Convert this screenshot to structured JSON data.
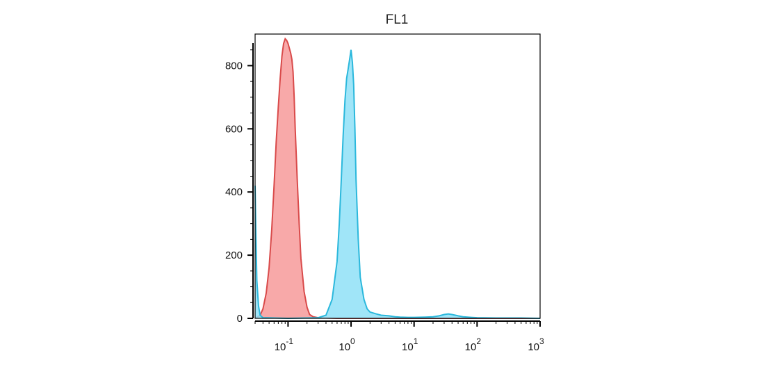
{
  "chart_data": {
    "type": "area",
    "title": "FL1",
    "xlabel": "",
    "ylabel": "",
    "xscale": "log",
    "xlim": [
      0.03,
      1000
    ],
    "ylim": [
      0,
      900
    ],
    "grid": false,
    "legend": "none",
    "yticks": [
      {
        "value": 0,
        "label": "0"
      },
      {
        "value": 200,
        "label": "200"
      },
      {
        "value": 400,
        "label": "400"
      },
      {
        "value": 600,
        "label": "600"
      },
      {
        "value": 800,
        "label": "800"
      }
    ],
    "xticks": [
      {
        "value": 0.1,
        "base": "10",
        "exp": "-1"
      },
      {
        "value": 1,
        "base": "10",
        "exp": "0"
      },
      {
        "value": 10,
        "base": "10",
        "exp": "1"
      },
      {
        "value": 100,
        "base": "10",
        "exp": "2"
      },
      {
        "value": 1000,
        "base": "10",
        "exp": "3"
      }
    ],
    "series": [
      {
        "color": "#d94a4a",
        "fill": "#f79a9a",
        "x": [
          0.031,
          0.033,
          0.036,
          0.04,
          0.045,
          0.05,
          0.055,
          0.06,
          0.065,
          0.07,
          0.075,
          0.08,
          0.085,
          0.09,
          0.095,
          0.1,
          0.105,
          0.11,
          0.115,
          0.12,
          0.125,
          0.13,
          0.14,
          0.15,
          0.16,
          0.18,
          0.2,
          0.22,
          0.25,
          0.3,
          0.4,
          0.6,
          1000
        ],
        "values": [
          0,
          5,
          10,
          30,
          80,
          160,
          280,
          420,
          560,
          670,
          760,
          830,
          870,
          885,
          880,
          870,
          855,
          840,
          820,
          780,
          700,
          600,
          440,
          300,
          190,
          85,
          35,
          12,
          5,
          2,
          1,
          0,
          0
        ]
      },
      {
        "color": "#2bb8dc",
        "fill": "#8fe0f7",
        "x": [
          0.03,
          0.031,
          0.032,
          0.034,
          0.036,
          0.04,
          0.1,
          0.3,
          0.4,
          0.5,
          0.6,
          0.65,
          0.7,
          0.75,
          0.8,
          0.85,
          0.9,
          0.95,
          1.0,
          1.05,
          1.1,
          1.15,
          1.2,
          1.3,
          1.4,
          1.6,
          1.8,
          2.0,
          2.5,
          3,
          4,
          5,
          6,
          8,
          10,
          15,
          20,
          25,
          30,
          35,
          40,
          50,
          60,
          80,
          100,
          200,
          500,
          1000
        ],
        "values": [
          420,
          250,
          120,
          40,
          10,
          2,
          0,
          2,
          10,
          60,
          180,
          300,
          440,
          580,
          690,
          760,
          790,
          820,
          850,
          810,
          740,
          600,
          440,
          250,
          130,
          60,
          30,
          20,
          14,
          10,
          8,
          5,
          4,
          3,
          3,
          4,
          5,
          8,
          12,
          14,
          12,
          8,
          5,
          3,
          2,
          1,
          1,
          0
        ]
      }
    ]
  }
}
